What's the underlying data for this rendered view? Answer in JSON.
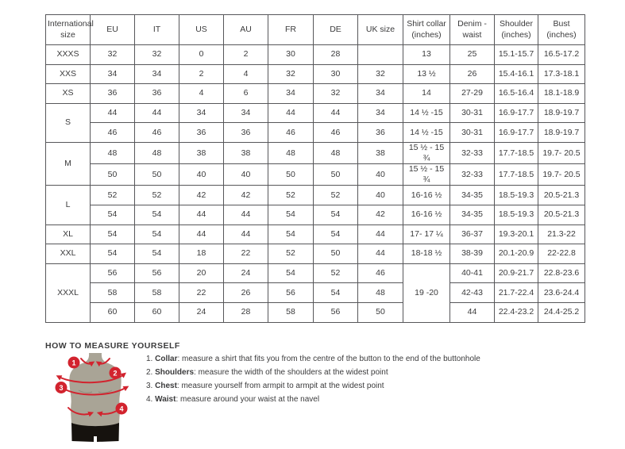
{
  "colors": {
    "border": "#57575a",
    "text": "#3b3b3c",
    "red": "#d2232e",
    "torso": "#a9a496",
    "torso_shade": "#8f8a7c",
    "shorts": "#16120e",
    "marker_text": "#ffffff"
  },
  "table": {
    "headers": [
      "International\nsize",
      "EU",
      "IT",
      "US",
      "AU",
      "FR",
      "DE",
      "UK size",
      "Shirt collar\n(inches)",
      "Denim -\nwaist",
      "Shoulder\n(inches)",
      "Bust (inches)"
    ],
    "rows": [
      [
        {
          "t": "XXXS"
        },
        {
          "t": "32"
        },
        {
          "t": "32"
        },
        {
          "t": "0"
        },
        {
          "t": "2"
        },
        {
          "t": "30"
        },
        {
          "t": "28"
        },
        {
          "t": ""
        },
        {
          "t": "13"
        },
        {
          "t": "25"
        },
        {
          "t": "15.1-15.7"
        },
        {
          "t": "16.5-17.2"
        }
      ],
      [
        {
          "t": "XXS"
        },
        {
          "t": "34"
        },
        {
          "t": "34"
        },
        {
          "t": "2"
        },
        {
          "t": "4"
        },
        {
          "t": "32"
        },
        {
          "t": "30"
        },
        {
          "t": "32"
        },
        {
          "t": "13 ½"
        },
        {
          "t": "26"
        },
        {
          "t": "15.4-16.1"
        },
        {
          "t": "17.3-18.1"
        }
      ],
      [
        {
          "t": "XS"
        },
        {
          "t": "36"
        },
        {
          "t": "36"
        },
        {
          "t": "4"
        },
        {
          "t": "6"
        },
        {
          "t": "34"
        },
        {
          "t": "32"
        },
        {
          "t": "34"
        },
        {
          "t": "14"
        },
        {
          "t": "27-29"
        },
        {
          "t": "16.5-16.4"
        },
        {
          "t": "18.1-18.9"
        }
      ],
      [
        {
          "t": "S",
          "rs": 2
        },
        {
          "t": "44"
        },
        {
          "t": "44"
        },
        {
          "t": "34"
        },
        {
          "t": "34"
        },
        {
          "t": "44"
        },
        {
          "t": "44"
        },
        {
          "t": "34"
        },
        {
          "t": "14 ½ -15"
        },
        {
          "t": "30-31"
        },
        {
          "t": "16.9-17.7"
        },
        {
          "t": "18.9-19.7"
        }
      ],
      [
        {
          "t": "46"
        },
        {
          "t": "46"
        },
        {
          "t": "36"
        },
        {
          "t": "36"
        },
        {
          "t": "46"
        },
        {
          "t": "46"
        },
        {
          "t": "36"
        },
        {
          "t": "14 ½ -15"
        },
        {
          "t": "30-31"
        },
        {
          "t": "16.9-17.7"
        },
        {
          "t": "18.9-19.7"
        }
      ],
      [
        {
          "t": "M",
          "rs": 2
        },
        {
          "t": "48"
        },
        {
          "t": "48"
        },
        {
          "t": "38"
        },
        {
          "t": "38"
        },
        {
          "t": "48"
        },
        {
          "t": "48"
        },
        {
          "t": "38"
        },
        {
          "t": "15 ½ - 15 ¾"
        },
        {
          "t": "32-33"
        },
        {
          "t": "17.7-18.5"
        },
        {
          "t": "19.7- 20.5"
        }
      ],
      [
        {
          "t": "50"
        },
        {
          "t": "50"
        },
        {
          "t": "40"
        },
        {
          "t": "40"
        },
        {
          "t": "50"
        },
        {
          "t": "50"
        },
        {
          "t": "40"
        },
        {
          "t": "15 ½ - 15 ¾"
        },
        {
          "t": "32-33"
        },
        {
          "t": "17.7-18.5"
        },
        {
          "t": "19.7- 20.5"
        }
      ],
      [
        {
          "t": "L",
          "rs": 2
        },
        {
          "t": "52"
        },
        {
          "t": "52"
        },
        {
          "t": "42"
        },
        {
          "t": "42"
        },
        {
          "t": "52"
        },
        {
          "t": "52"
        },
        {
          "t": "40"
        },
        {
          "t": "16-16 ½"
        },
        {
          "t": "34-35"
        },
        {
          "t": "18.5-19.3"
        },
        {
          "t": "20.5-21.3"
        }
      ],
      [
        {
          "t": "54"
        },
        {
          "t": "54"
        },
        {
          "t": "44"
        },
        {
          "t": "44"
        },
        {
          "t": "54"
        },
        {
          "t": "54"
        },
        {
          "t": "42"
        },
        {
          "t": "16-16 ½"
        },
        {
          "t": "34-35"
        },
        {
          "t": "18.5-19.3"
        },
        {
          "t": "20.5-21.3"
        }
      ],
      [
        {
          "t": "XL"
        },
        {
          "t": "54"
        },
        {
          "t": "54"
        },
        {
          "t": "44"
        },
        {
          "t": "44"
        },
        {
          "t": "54"
        },
        {
          "t": "54"
        },
        {
          "t": "44"
        },
        {
          "t": "17- 17 ¼"
        },
        {
          "t": "36-37"
        },
        {
          "t": "19.3-20.1"
        },
        {
          "t": "21.3-22"
        }
      ],
      [
        {
          "t": "XXL"
        },
        {
          "t": "54"
        },
        {
          "t": "54"
        },
        {
          "t": "18"
        },
        {
          "t": "22"
        },
        {
          "t": "52"
        },
        {
          "t": "50"
        },
        {
          "t": "44"
        },
        {
          "t": "18-18 ½"
        },
        {
          "t": "38-39"
        },
        {
          "t": "20.1-20.9"
        },
        {
          "t": "22-22.8"
        }
      ],
      [
        {
          "t": "XXXL",
          "rs": 3
        },
        {
          "t": "56"
        },
        {
          "t": "56"
        },
        {
          "t": "20"
        },
        {
          "t": "24"
        },
        {
          "t": "54"
        },
        {
          "t": "52"
        },
        {
          "t": "46"
        },
        {
          "t": "19 -20",
          "rs": 3
        },
        {
          "t": "40-41"
        },
        {
          "t": "20.9-21.7"
        },
        {
          "t": "22.8-23.6"
        }
      ],
      [
        {
          "t": "58"
        },
        {
          "t": "58"
        },
        {
          "t": "22"
        },
        {
          "t": "26"
        },
        {
          "t": "56"
        },
        {
          "t": "54"
        },
        {
          "t": "48"
        },
        {
          "t": "42-43"
        },
        {
          "t": "21.7-22.4"
        },
        {
          "t": "23.6-24.4"
        }
      ],
      [
        {
          "t": "60"
        },
        {
          "t": "60"
        },
        {
          "t": "24"
        },
        {
          "t": "28"
        },
        {
          "t": "58"
        },
        {
          "t": "56"
        },
        {
          "t": "50"
        },
        {
          "t": "44"
        },
        {
          "t": "22.4-23.2"
        },
        {
          "t": "24.4-25.2"
        }
      ]
    ]
  },
  "measure": {
    "heading": "HOW TO MEASURE YOURSELF",
    "items": [
      {
        "num": "1.",
        "term": "Collar",
        "rest": ": measure a shirt that fits you from the centre of the button to the end of the buttonhole"
      },
      {
        "num": "2.",
        "term": "Shoulders",
        "rest": ": measure the width of the shoulders at the widest point"
      },
      {
        "num": "3.",
        "term": "Chest",
        "rest": ": measure yourself from armpit to armpit at the widest point"
      },
      {
        "num": "4.",
        "term": "Waist",
        "rest": ": measure around your waist at the navel"
      }
    ],
    "figure_markers": [
      "1",
      "2",
      "3",
      "4"
    ]
  }
}
